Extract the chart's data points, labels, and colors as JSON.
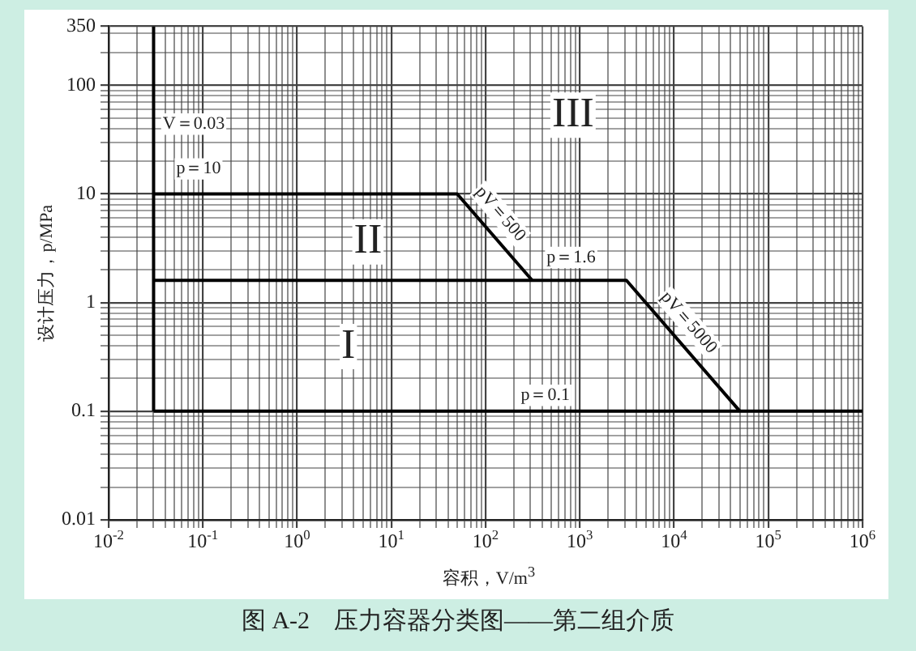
{
  "chart_data": {
    "type": "line",
    "xlabel": "容积，V/m$^{3}$",
    "ylabel": "设计压力，p/MPa",
    "log": "xy",
    "grid": true,
    "legend": false,
    "marker": "none",
    "line_style": "solid",
    "xlim": [
      0.01,
      1000000
    ],
    "ylim": [
      0.01,
      350
    ],
    "xticks": [
      {
        "value": 0.01,
        "label": "10$^{-2}$"
      },
      {
        "value": 0.02,
        "label": null
      },
      {
        "value": 0.03,
        "label": null
      },
      {
        "value": 0.04,
        "label": null
      },
      {
        "value": 0.05,
        "label": null
      },
      {
        "value": 0.06,
        "label": null
      },
      {
        "value": 0.07,
        "label": null
      },
      {
        "value": 0.08,
        "label": null
      },
      {
        "value": 0.09,
        "label": null
      },
      {
        "value": 0.1,
        "label": "10$^{-1}$"
      },
      {
        "value": 0.2,
        "label": null
      },
      {
        "value": 0.3,
        "label": null
      },
      {
        "value": 0.4,
        "label": null
      },
      {
        "value": 0.5,
        "label": null
      },
      {
        "value": 0.6,
        "label": null
      },
      {
        "value": 0.7,
        "label": null
      },
      {
        "value": 0.8,
        "label": null
      },
      {
        "value": 0.9,
        "label": null
      },
      {
        "value": 1,
        "label": "10$^{0}$"
      },
      {
        "value": 2,
        "label": null
      },
      {
        "value": 3,
        "label": null
      },
      {
        "value": 4,
        "label": null
      },
      {
        "value": 5,
        "label": null
      },
      {
        "value": 6,
        "label": null
      },
      {
        "value": 7,
        "label": null
      },
      {
        "value": 8,
        "label": null
      },
      {
        "value": 9,
        "label": null
      },
      {
        "value": 10,
        "label": "10$^{1}$"
      },
      {
        "value": 20,
        "label": null
      },
      {
        "value": 30,
        "label": null
      },
      {
        "value": 40,
        "label": null
      },
      {
        "value": 50,
        "label": null
      },
      {
        "value": 60,
        "label": null
      },
      {
        "value": 70,
        "label": null
      },
      {
        "value": 80,
        "label": null
      },
      {
        "value": 90,
        "label": null
      },
      {
        "value": 100,
        "label": "10$^{2}$"
      },
      {
        "value": 200,
        "label": null
      },
      {
        "value": 300,
        "label": null
      },
      {
        "value": 400,
        "label": null
      },
      {
        "value": 500,
        "label": null
      },
      {
        "value": 600,
        "label": null
      },
      {
        "value": 700,
        "label": null
      },
      {
        "value": 800,
        "label": null
      },
      {
        "value": 900,
        "label": null
      },
      {
        "value": 1000,
        "label": "10$^{3}$"
      },
      {
        "value": 2000,
        "label": null
      },
      {
        "value": 3000,
        "label": null
      },
      {
        "value": 4000,
        "label": null
      },
      {
        "value": 5000,
        "label": null
      },
      {
        "value": 6000,
        "label": null
      },
      {
        "value": 7000,
        "label": null
      },
      {
        "value": 8000,
        "label": null
      },
      {
        "value": 9000,
        "label": null
      },
      {
        "value": 10000,
        "label": "10$^{4}$"
      },
      {
        "value": 20000,
        "label": null
      },
      {
        "value": 30000,
        "label": null
      },
      {
        "value": 40000,
        "label": null
      },
      {
        "value": 50000,
        "label": null
      },
      {
        "value": 60000,
        "label": null
      },
      {
        "value": 70000,
        "label": null
      },
      {
        "value": 80000,
        "label": null
      },
      {
        "value": 90000,
        "label": null
      },
      {
        "value": 100000,
        "label": "10$^{5}$"
      },
      {
        "value": 200000,
        "label": null
      },
      {
        "value": 300000,
        "label": null
      },
      {
        "value": 400000,
        "label": null
      },
      {
        "value": 500000,
        "label": null
      },
      {
        "value": 600000,
        "label": null
      },
      {
        "value": 700000,
        "label": null
      },
      {
        "value": 800000,
        "label": null
      },
      {
        "value": 900000,
        "label": null
      },
      {
        "value": 1000000,
        "label": "10$^{6}$"
      }
    ],
    "yticks": [
      0.01,
      {
        "value": 0.02,
        "label": null
      },
      {
        "value": 0.03,
        "label": null
      },
      {
        "value": 0.04,
        "label": null
      },
      {
        "value": 0.05,
        "label": null
      },
      {
        "value": 0.06,
        "label": null
      },
      {
        "value": 0.07,
        "label": null
      },
      {
        "value": 0.08,
        "label": null
      },
      {
        "value": 0.09,
        "label": null
      },
      0.1,
      {
        "value": 0.2,
        "label": null
      },
      {
        "value": 0.3,
        "label": null
      },
      {
        "value": 0.4,
        "label": null
      },
      {
        "value": 0.5,
        "label": null
      },
      {
        "value": 0.6,
        "label": null
      },
      {
        "value": 0.7,
        "label": null
      },
      {
        "value": 0.8,
        "label": null
      },
      {
        "value": 0.9,
        "label": null
      },
      1,
      {
        "value": 2,
        "label": null
      },
      {
        "value": 3,
        "label": null
      },
      {
        "value": 4,
        "label": null
      },
      {
        "value": 5,
        "label": null
      },
      {
        "value": 6,
        "label": null
      },
      {
        "value": 7,
        "label": null
      },
      {
        "value": 8,
        "label": null
      },
      {
        "value": 9,
        "label": null
      },
      10,
      {
        "value": 20,
        "label": null
      },
      {
        "value": 30,
        "label": null
      },
      {
        "value": 40,
        "label": null
      },
      {
        "value": 50,
        "label": null
      },
      {
        "value": 60,
        "label": null
      },
      {
        "value": 70,
        "label": null
      },
      {
        "value": 80,
        "label": null
      },
      {
        "value": 90,
        "label": null
      },
      100,
      {
        "value": 200,
        "label": null
      },
      {
        "value": 300,
        "label": null
      },
      350
    ],
    "series": [
      {
        "color": "#000000",
        "x": [
          0.03,
          0.03
        ],
        "values": [
          0.1,
          350
        ]
      },
      {
        "color": "#000000",
        "x": [
          0.03,
          50,
          312.5
        ],
        "values": [
          10,
          10,
          1.6
        ]
      },
      {
        "color": "#000000",
        "x": [
          0.03,
          3125,
          50000
        ],
        "values": [
          1.6,
          1.6,
          0.1
        ]
      },
      {
        "color": "#000000",
        "x": [
          0.03,
          1000000
        ],
        "values": [
          0.1,
          0.1
        ]
      }
    ],
    "annotations": [
      {
        "text": "V＝0.03",
        "x": 0.08,
        "y": 44
      },
      {
        "text": "p＝10",
        "x": 0.09,
        "y": 17
      },
      {
        "text": "pV＝500",
        "x": 100,
        "y": 5
      },
      {
        "text": "p＝1.6",
        "x": 810,
        "y": 2.6
      },
      {
        "text": "pV＝5000",
        "x": 10000,
        "y": 0.5
      },
      {
        "text": "p＝0.1",
        "x": 430,
        "y": 0.14
      },
      "III",
      "II",
      "I",
      "图 A-2　压力容器分类图——第二组介质"
    ]
  }
}
